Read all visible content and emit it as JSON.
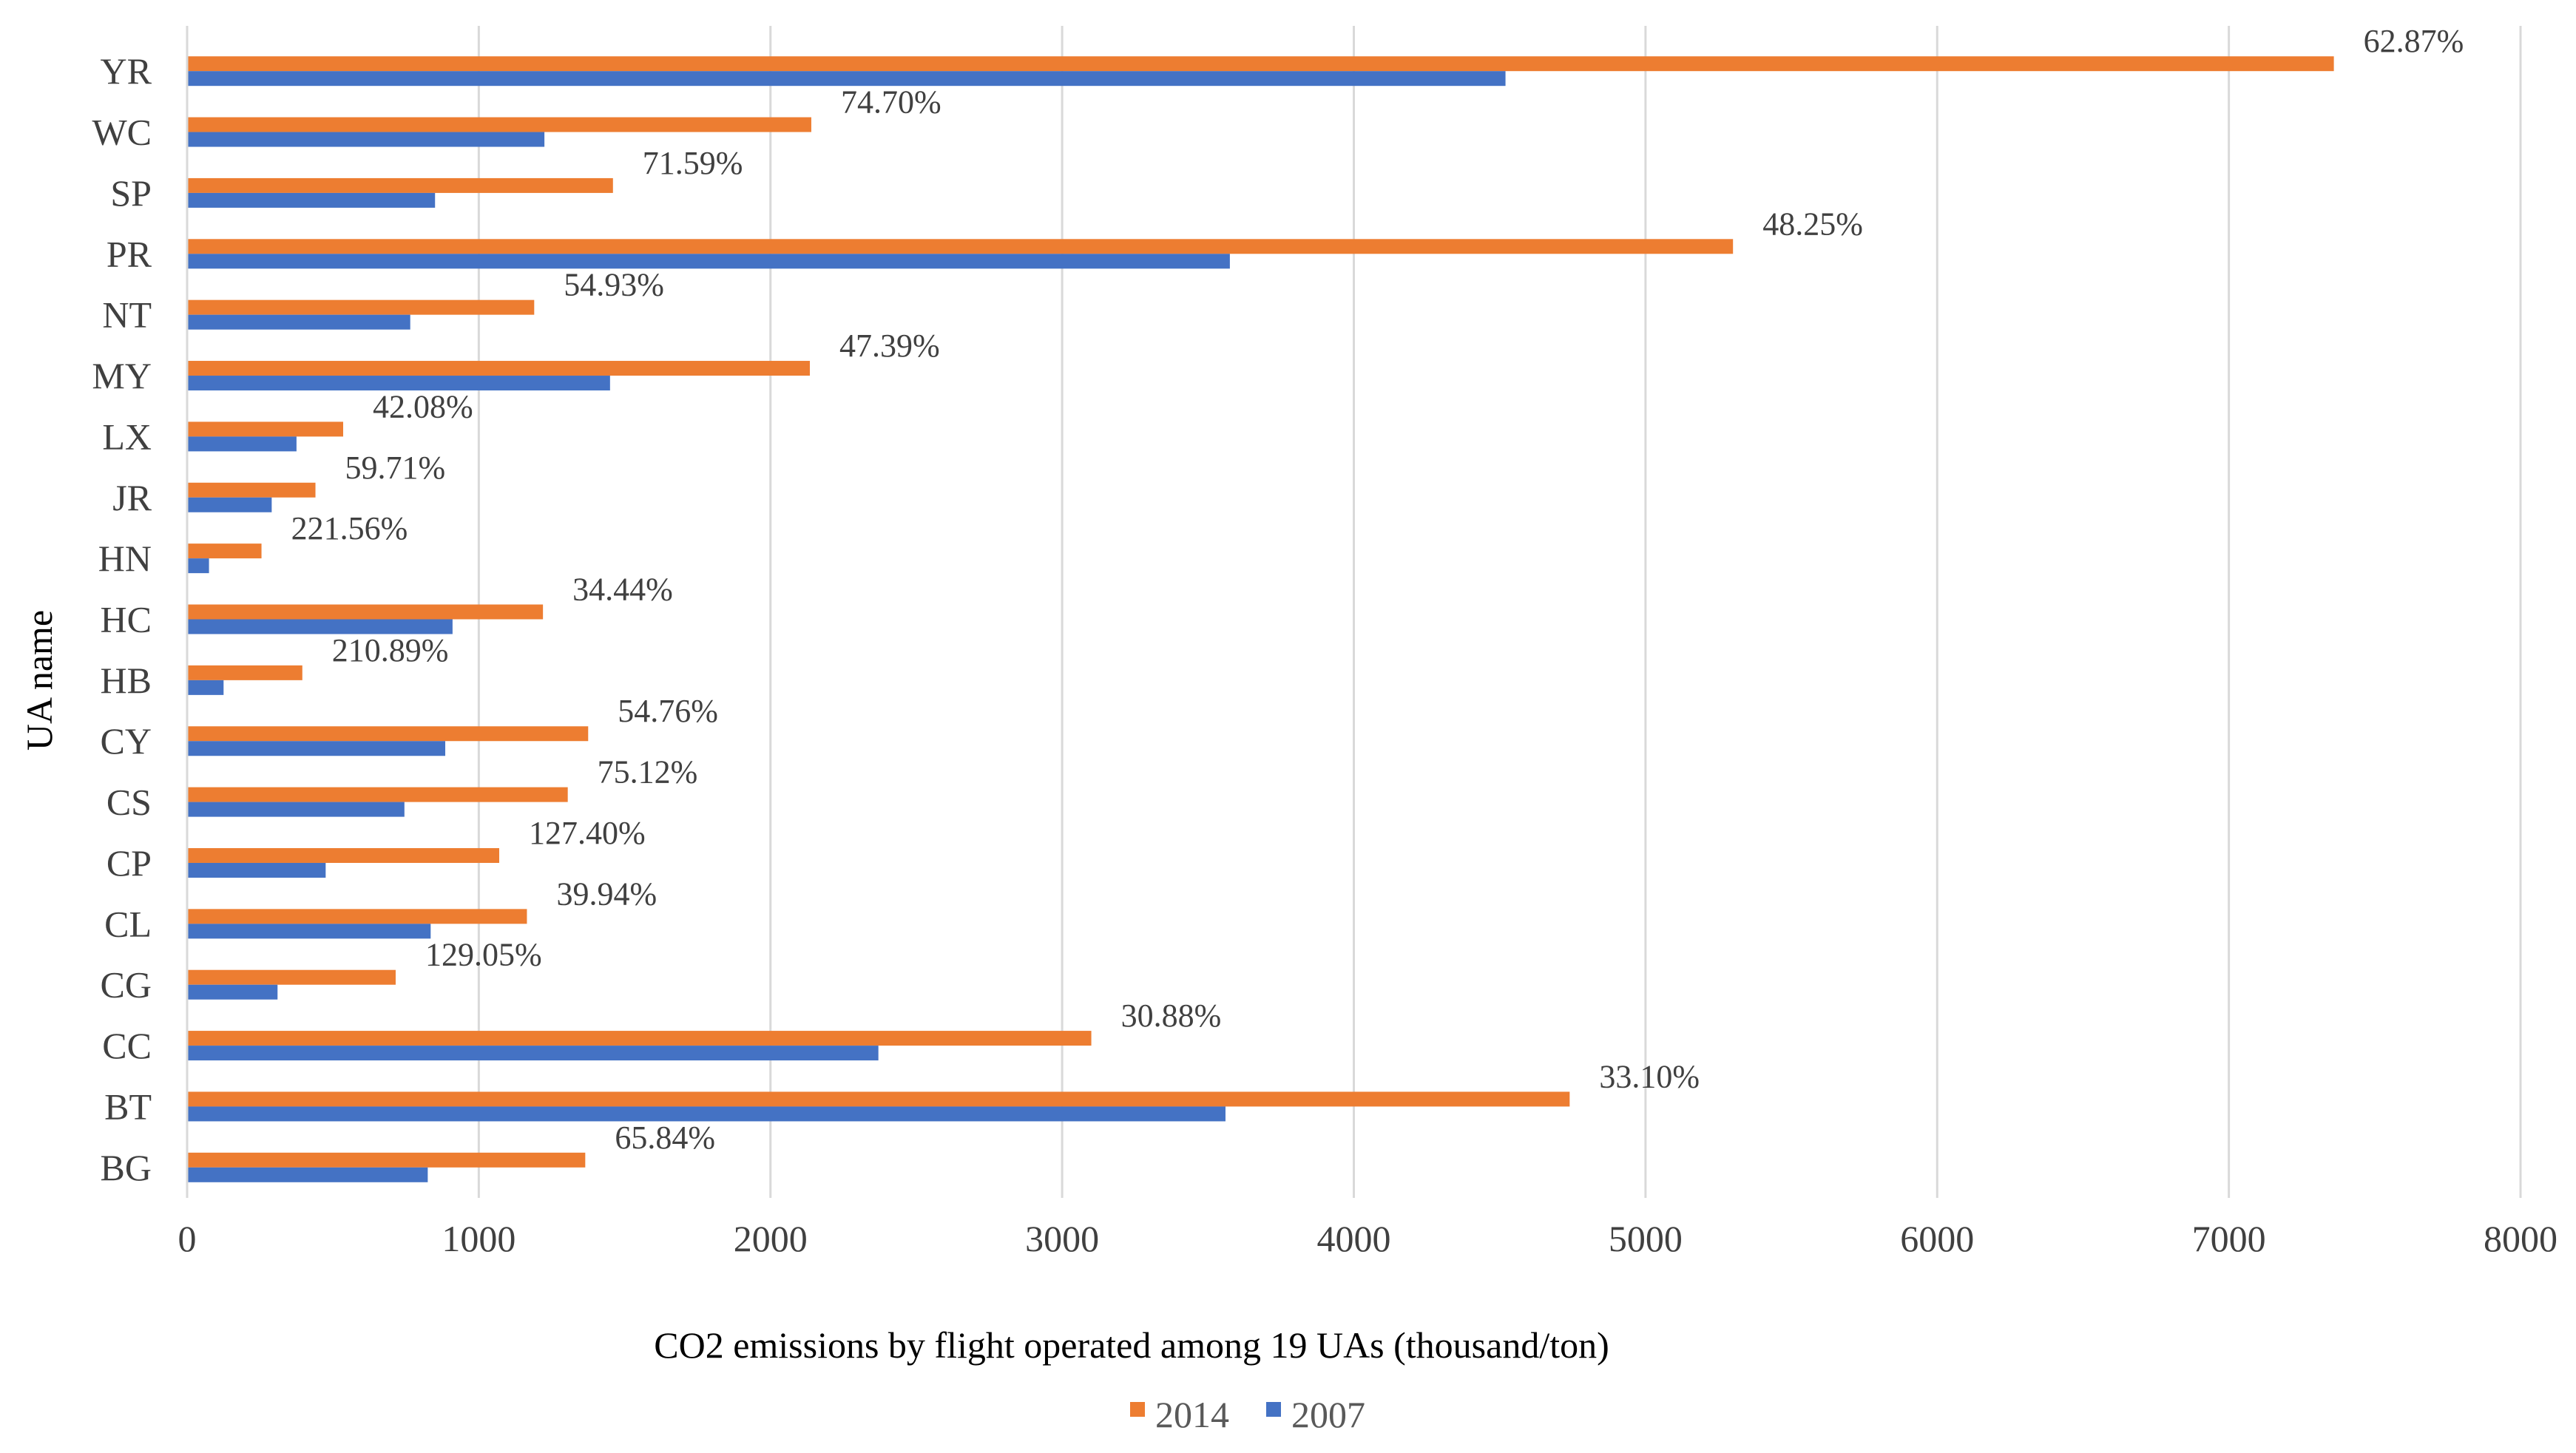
{
  "chart_data": {
    "type": "bar",
    "orientation": "horizontal",
    "title": "",
    "xlabel": "CO2 emissions by flight operated among 19 UAs (thousand/ton)",
    "ylabel": "UA name",
    "xlim": [
      0,
      8000
    ],
    "xticks": [
      "0",
      "1000",
      "2000",
      "3000",
      "4000",
      "5000",
      "6000",
      "7000",
      "8000"
    ],
    "grid": "vertical",
    "legend_position": "bottom",
    "categories": [
      "YR",
      "WC",
      "SP",
      "PR",
      "NT",
      "MY",
      "LX",
      "JR",
      "HN",
      "HC",
      "HB",
      "CY",
      "CS",
      "CP",
      "CL",
      "CG",
      "CC",
      "BT",
      "BG"
    ],
    "series": [
      {
        "name": "2014",
        "color": "#ED7D31",
        "values": [
          7360,
          2140,
          1460,
          5300,
          1190,
          2135,
          535,
          440,
          255,
          1220,
          395,
          1375,
          1305,
          1070,
          1165,
          715,
          3100,
          4740,
          1365
        ]
      },
      {
        "name": "2007",
        "color": "#4472C4",
        "values": [
          4520,
          1225,
          850,
          3575,
          765,
          1450,
          375,
          290,
          75,
          910,
          125,
          885,
          745,
          475,
          835,
          310,
          2370,
          3560,
          825
        ]
      }
    ],
    "data_labels": [
      "62.87%",
      "74.70%",
      "71.59%",
      "48.25%",
      "54.93%",
      "47.39%",
      "42.08%",
      "59.71%",
      "221.56%",
      "34.44%",
      "210.89%",
      "54.76%",
      "75.12%",
      "127.40%",
      "39.94%",
      "129.05%",
      "30.88%",
      "33.10%",
      "65.84%"
    ],
    "legend": [
      "2014",
      "2007"
    ]
  },
  "colors": {
    "series_2014": "#ED7D31",
    "series_2007": "#4472C4",
    "gridline": "#D9D9D9",
    "text": "#404040"
  }
}
